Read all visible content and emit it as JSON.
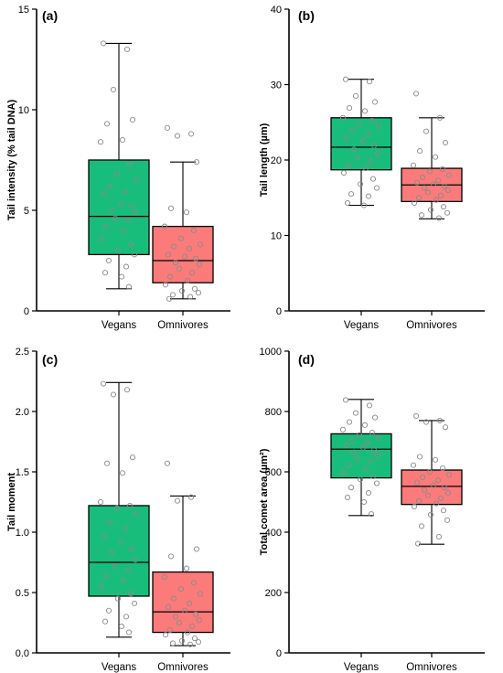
{
  "colors": {
    "vegans": "#18bd7b",
    "omnivores": "#fb7b7b",
    "points": "#8a8a8a"
  },
  "chart_data": [
    {
      "type": "box",
      "panel_label": "(a)",
      "ylabel": "Tail intensity (% tail DNA)",
      "ylim": [
        0,
        15
      ],
      "yticks": [
        0,
        5,
        10,
        15
      ],
      "categories": [
        "Vegans",
        "Omnivores"
      ],
      "boxes": [
        {
          "name": "Vegans",
          "min": 1.1,
          "q1": 2.8,
          "median": 4.7,
          "q3": 7.5,
          "max": 13.3,
          "points": [
            13.3,
            13.0,
            11.0,
            9.5,
            9.3,
            8.5,
            8.4,
            7.3,
            6.8,
            6.5,
            6.2,
            5.9,
            5.8,
            5.3,
            5.2,
            5.0,
            4.9,
            4.6,
            4.5,
            4.2,
            4.0,
            3.6,
            3.3,
            3.0,
            2.8,
            2.5,
            2.2,
            1.9,
            1.7,
            1.2
          ]
        },
        {
          "name": "Omnivores",
          "min": 0.6,
          "q1": 1.4,
          "median": 2.5,
          "q3": 4.2,
          "max": 7.4,
          "points": [
            9.1,
            8.8,
            8.7,
            7.4,
            5.1,
            4.9,
            4.2,
            4.0,
            3.6,
            3.3,
            3.2,
            3.1,
            2.8,
            2.7,
            2.6,
            2.4,
            2.3,
            2.1,
            1.9,
            1.7,
            1.5,
            1.3,
            1.1,
            1.0,
            0.9,
            0.8,
            0.7,
            0.6
          ]
        }
      ]
    },
    {
      "type": "box",
      "panel_label": "(b)",
      "ylabel": "Tail length (µm)",
      "ylim": [
        0,
        40
      ],
      "yticks": [
        0,
        10,
        20,
        30,
        40
      ],
      "categories": [
        "Vegans",
        "Omnivores"
      ],
      "boxes": [
        {
          "name": "Vegans",
          "min": 14.0,
          "q1": 18.7,
          "median": 21.7,
          "q3": 25.6,
          "max": 30.7,
          "points": [
            30.7,
            30.4,
            28.5,
            27.7,
            26.9,
            26.5,
            25.6,
            25.2,
            24.8,
            24.5,
            23.9,
            23.4,
            22.9,
            22.5,
            21.9,
            21.4,
            20.9,
            20.3,
            19.8,
            19.3,
            18.9,
            18.3,
            17.5,
            16.8,
            16.3,
            15.5,
            15.2,
            14.3,
            14.0
          ]
        },
        {
          "name": "Omnivores",
          "min": 12.2,
          "q1": 14.5,
          "median": 16.7,
          "q3": 18.9,
          "max": 25.6,
          "points": [
            28.8,
            25.6,
            23.8,
            22.3,
            21.2,
            20.4,
            19.3,
            18.8,
            18.5,
            18.0,
            17.7,
            17.3,
            17.0,
            16.8,
            16.5,
            16.3,
            16.0,
            15.7,
            15.3,
            15.0,
            14.7,
            14.3,
            13.8,
            13.4,
            13.0,
            12.7,
            12.3
          ]
        }
      ]
    },
    {
      "type": "box",
      "panel_label": "(c)",
      "ylabel": "Tail moment",
      "ylim": [
        0,
        2.5
      ],
      "yticks": [
        0.0,
        0.5,
        1.0,
        1.5,
        2.0,
        2.5
      ],
      "ytick_labels": [
        "0.0",
        "0.5",
        "1.0",
        "1.5",
        "2.0",
        "2.5"
      ],
      "categories": [
        "Vegans",
        "Omnivores"
      ],
      "boxes": [
        {
          "name": "Vegans",
          "min": 0.13,
          "q1": 0.47,
          "median": 0.75,
          "q3": 1.22,
          "max": 2.24,
          "points": [
            2.23,
            2.18,
            2.14,
            1.62,
            1.57,
            1.49,
            1.25,
            1.22,
            1.2,
            1.15,
            1.08,
            1.03,
            0.97,
            0.92,
            0.86,
            0.83,
            0.77,
            0.72,
            0.68,
            0.64,
            0.6,
            0.55,
            0.49,
            0.45,
            0.41,
            0.35,
            0.3,
            0.26,
            0.22,
            0.17
          ]
        },
        {
          "name": "Omnivores",
          "min": 0.06,
          "q1": 0.17,
          "median": 0.34,
          "q3": 0.67,
          "max": 1.3,
          "points": [
            1.57,
            1.29,
            1.26,
            0.86,
            0.8,
            0.7,
            0.63,
            0.58,
            0.53,
            0.49,
            0.45,
            0.41,
            0.38,
            0.35,
            0.32,
            0.3,
            0.27,
            0.25,
            0.22,
            0.19,
            0.17,
            0.15,
            0.12,
            0.1,
            0.09,
            0.08,
            0.07
          ]
        }
      ]
    },
    {
      "type": "box",
      "panel_label": "(d)",
      "ylabel": "Total comet area (µm²)",
      "ylim": [
        0,
        1000
      ],
      "yticks": [
        0,
        200,
        400,
        600,
        800,
        1000
      ],
      "categories": [
        "Vegans",
        "Omnivores"
      ],
      "boxes": [
        {
          "name": "Vegans",
          "min": 455,
          "q1": 580,
          "median": 675,
          "q3": 726,
          "max": 840,
          "points": [
            838,
            820,
            795,
            780,
            765,
            755,
            740,
            730,
            722,
            712,
            703,
            695,
            688,
            680,
            672,
            665,
            655,
            645,
            635,
            622,
            610,
            598,
            585,
            575,
            562,
            548,
            530,
            515,
            500,
            460
          ]
        },
        {
          "name": "Omnivores",
          "min": 360,
          "q1": 492,
          "median": 552,
          "q3": 606,
          "max": 770,
          "points": [
            785,
            770,
            765,
            748,
            650,
            640,
            622,
            612,
            600,
            590,
            582,
            572,
            565,
            556,
            548,
            540,
            530,
            522,
            512,
            503,
            495,
            485,
            472,
            458,
            440,
            420,
            385,
            362
          ]
        }
      ]
    }
  ]
}
